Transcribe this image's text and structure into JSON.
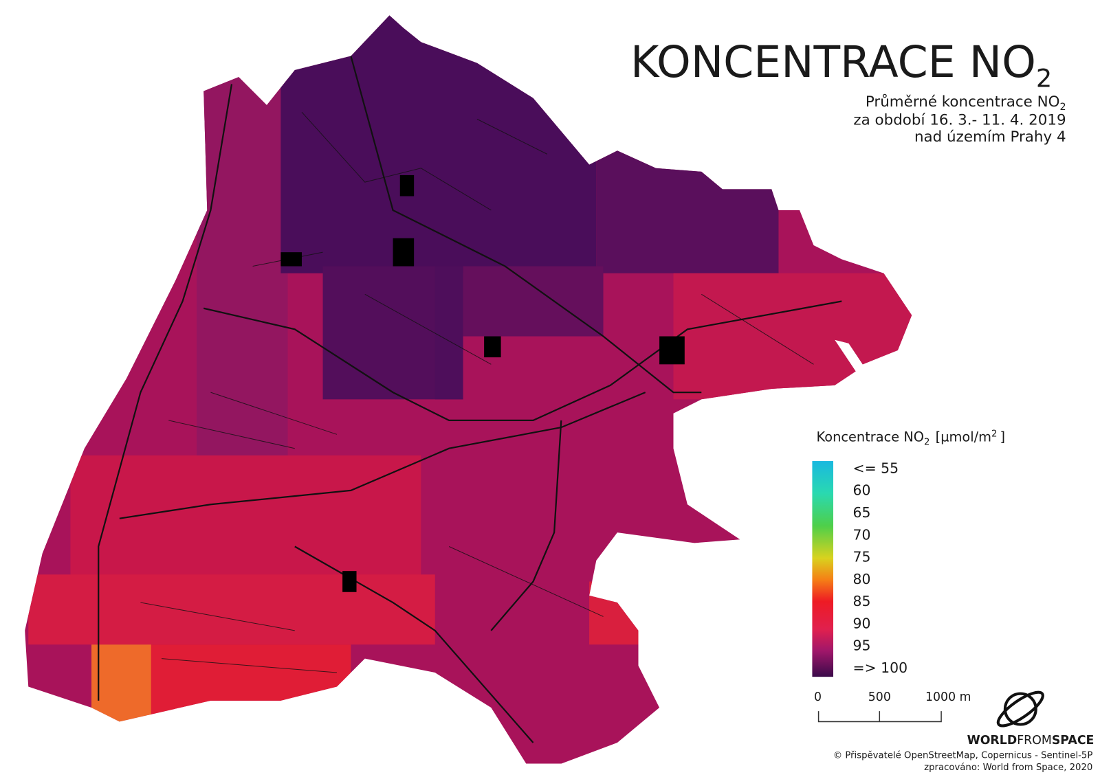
{
  "title": {
    "text": "KONCENTRACE NO",
    "sub": "2"
  },
  "subtitle": {
    "line1": "Průměrné koncentrace NO",
    "line1_sub": "2",
    "line2": "za období 16. 3.- 11. 4. 2019",
    "line3": "nad územím Prahy 4"
  },
  "legend": {
    "title": "Koncentrace NO",
    "title_sub": "2",
    "unit": "[µmol/m",
    "unit_sup": "2",
    "unit_end": "]",
    "labels": [
      "<= 55",
      "60",
      "65",
      "70",
      "75",
      "80",
      "85",
      "90",
      "95",
      "=> 100"
    ]
  },
  "scale_bar": {
    "labels": [
      "0",
      "500",
      "1000 m"
    ]
  },
  "logo": {
    "world": "WORLD",
    "from": "FROM",
    "space": "SPACE"
  },
  "credits": [
    "© Přispěvatelé OpenStreetMap, Copernicus - Sentinel-5P",
    "zpracováno: World from Space, 2020"
  ]
}
